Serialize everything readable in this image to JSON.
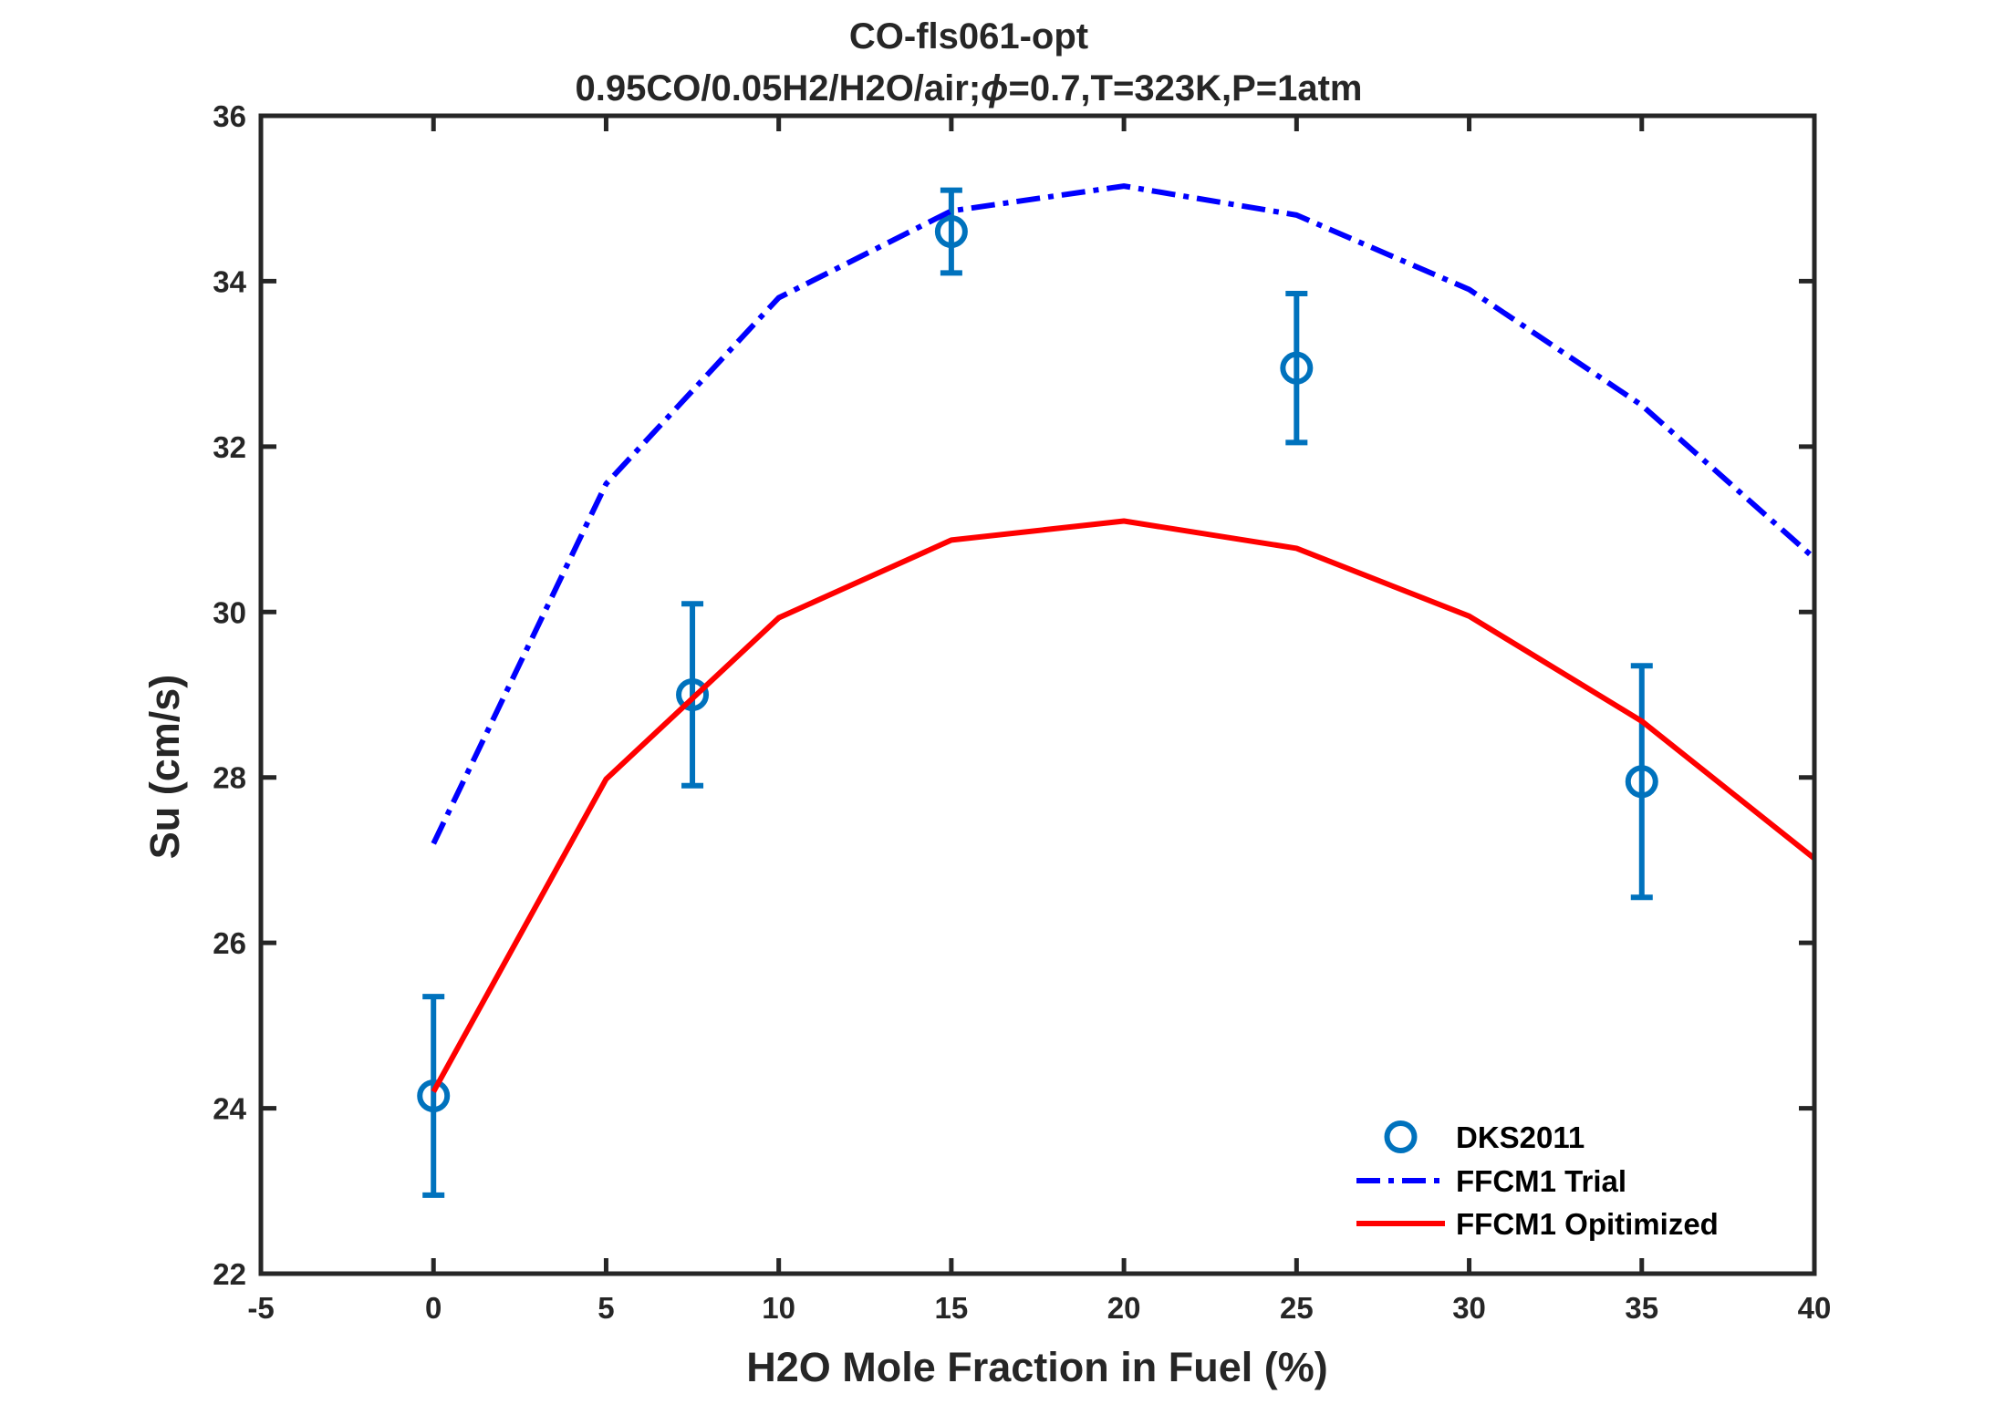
{
  "chart_data": {
    "type": "line",
    "title": "CO-fls061-opt",
    "subtitle_prefix": "0.95CO/0.05H2/H2O/air;",
    "subtitle_symbol": "ϕ",
    "subtitle_suffix": "=0.7,T=323K,P=1atm",
    "xlabel": "H2O Mole Fraction in Fuel (%)",
    "ylabel": "Su (cm/s)",
    "xlim": [
      -5,
      40
    ],
    "ylim": [
      22,
      36
    ],
    "xticks": [
      -5,
      0,
      5,
      10,
      15,
      20,
      25,
      30,
      35,
      40
    ],
    "yticks": [
      22,
      24,
      26,
      28,
      30,
      32,
      34,
      36
    ],
    "grid": false,
    "legend_position": "bottom-right",
    "series": [
      {
        "name": "DKS2011",
        "kind": "scatter-errorbar",
        "color": "#0072BD",
        "x": [
          0,
          7.5,
          15,
          25,
          35
        ],
        "y": [
          24.15,
          29.0,
          34.6,
          32.95,
          27.95
        ],
        "err": [
          1.2,
          1.1,
          0.5,
          0.9,
          1.4
        ]
      },
      {
        "name": "FFCM1 Trial",
        "kind": "line-dashdot",
        "color": "#0000FF",
        "x": [
          0,
          5,
          10,
          15,
          20,
          25,
          30,
          35,
          40
        ],
        "y": [
          27.2,
          31.55,
          33.8,
          34.85,
          35.15,
          34.8,
          33.9,
          32.5,
          30.65
        ]
      },
      {
        "name": "FFCM1 Opitimized",
        "kind": "line-solid",
        "color": "#FF0000",
        "x": [
          0,
          5,
          10,
          15,
          20,
          25,
          30,
          35,
          40
        ],
        "y": [
          24.2,
          27.98,
          29.93,
          30.87,
          31.1,
          30.77,
          29.95,
          28.68,
          27.02
        ]
      }
    ]
  }
}
